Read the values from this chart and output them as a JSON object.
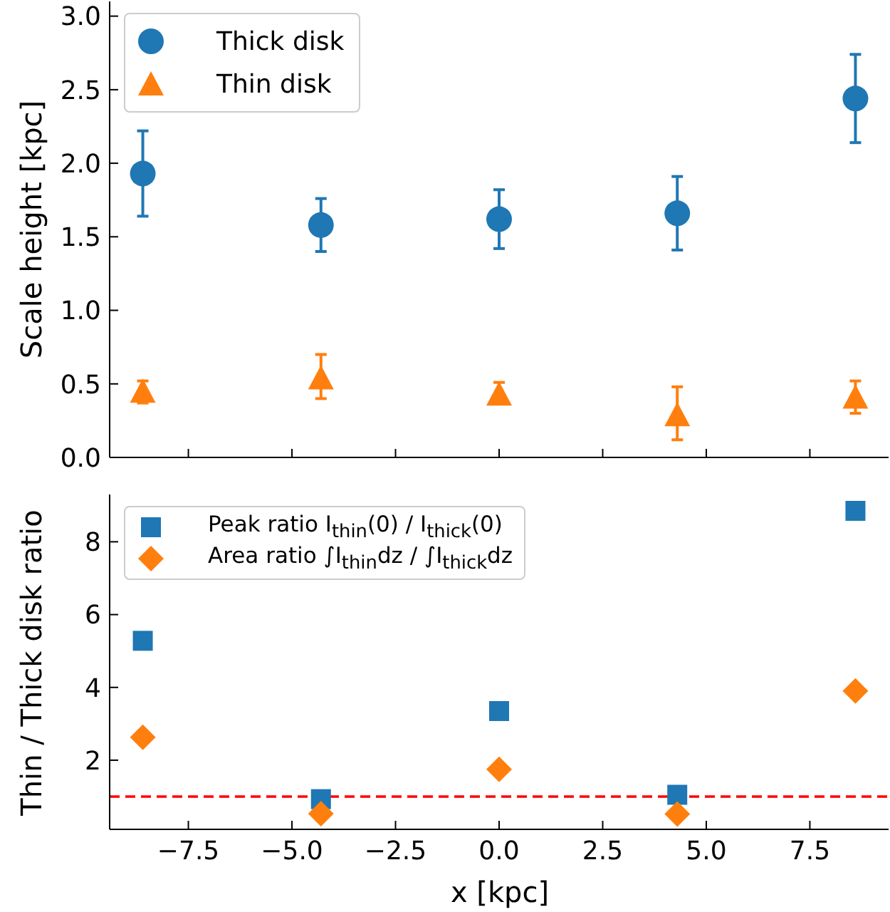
{
  "chart_data": [
    {
      "type": "scatter",
      "ylabel": "Scale height [kpc]",
      "xlim": [
        -9.4,
        9.4
      ],
      "xticks": [
        -7.5,
        -5.0,
        -2.5,
        0.0,
        2.5,
        5.0,
        7.5
      ],
      "ylim": [
        0,
        3.1
      ],
      "yticks": [
        {
          "value": 0,
          "label": "0.0"
        },
        0.5,
        {
          "value": 1,
          "label": "1.0"
        },
        1.5,
        {
          "value": 2,
          "label": "2.0"
        },
        2.5,
        {
          "value": 3,
          "label": "3.0"
        }
      ],
      "tick_labels": "y",
      "legend": "top left",
      "grid": false,
      "x": [
        -8.6,
        -4.3,
        0,
        4.3,
        8.6
      ],
      "series": [
        {
          "name": "Thick disk",
          "color": "#1f77b4",
          "marker": "circle",
          "values": [
            1.93,
            1.58,
            1.62,
            1.66,
            2.44
          ],
          "errors": [
            [
              1.64,
              2.22
            ],
            [
              1.4,
              1.76
            ],
            [
              1.42,
              1.82
            ],
            [
              1.41,
              1.91
            ],
            [
              2.14,
              2.74
            ]
          ]
        },
        {
          "name": "Thin disk",
          "color": "#ff7f0e",
          "marker": "triangle",
          "values": [
            0.44,
            0.53,
            0.42,
            0.28,
            0.4
          ],
          "errors": [
            [
              0.37,
              0.52
            ],
            [
              0.4,
              0.7
            ],
            [
              0.37,
              0.51
            ],
            [
              0.12,
              0.48
            ],
            [
              0.3,
              0.52
            ]
          ]
        }
      ]
    },
    {
      "type": "scatter",
      "xlabel": "x [kpc]",
      "ylabel": "Thin / Thick disk ratio",
      "xlim": [
        -9.4,
        9.4
      ],
      "xticks": [
        -7.5,
        {
          "value": -5,
          "label": "−5.0"
        },
        -2.5,
        {
          "value": 0,
          "label": "0.0"
        },
        2.5,
        {
          "value": 5,
          "label": "5.0"
        },
        7.5
      ],
      "ylim": [
        0.1,
        9.3
      ],
      "yticks": [
        2,
        4,
        6,
        8
      ],
      "legend": "top left",
      "grid": false,
      "x": [
        -8.6,
        -4.3,
        0,
        4.3,
        8.6
      ],
      "series": [
        {
          "name": "Peak ratio I$_{thin}$(0) / I$_{thick}$(0)",
          "color": "#1f77b4",
          "marker": "square",
          "values": [
            5.28,
            0.93,
            3.35,
            1.05,
            8.85
          ]
        },
        {
          "name": "Area ratio ∫I$_{thin}$dz / ∫I$_{thick}$dz",
          "color": "#ff7f0e",
          "marker": "diamond",
          "values": [
            2.63,
            0.53,
            1.75,
            0.52,
            3.9
          ]
        }
      ],
      "ref_lines": [
        {
          "axis": "y",
          "value": 1,
          "color": "#ff0000",
          "line_style": "dashed"
        }
      ]
    }
  ]
}
